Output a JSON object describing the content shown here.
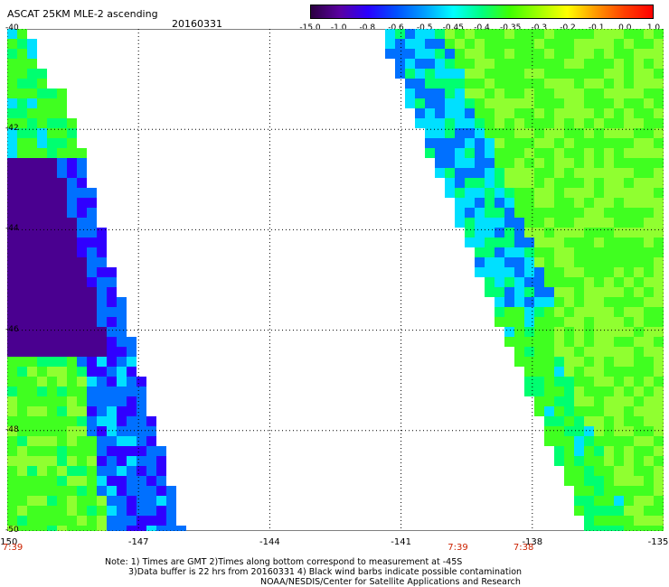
{
  "header": {
    "title": "ASCAT 25KM MLE-2 ascending",
    "date": "20160331"
  },
  "colorbar": {
    "labels": [
      "-15.0",
      "-1.0",
      "-0.8",
      "-0.6",
      "-0.5",
      "-0.45",
      "-0.4",
      "-0.35",
      "-0.3",
      "-0.2",
      "-0.1",
      "0.0",
      "1.0"
    ],
    "colors": [
      "#2b0040",
      "#5a00a0",
      "#2a00ff",
      "#0050ff",
      "#00a0ff",
      "#00ffff",
      "#00ff80",
      "#40ff00",
      "#a0ff00",
      "#ffff00",
      "#ff9900",
      "#ff4000",
      "#ff0000"
    ]
  },
  "map": {
    "lon_range": [
      -150,
      -135
    ],
    "lat_range": [
      -50,
      -40
    ],
    "lon_ticks": [
      "-150",
      "-147",
      "-144",
      "-141",
      "-138",
      "-135"
    ],
    "lat_ticks": [
      "-40",
      "-42",
      "-44",
      "-46",
      "-48",
      "-50"
    ],
    "time_labels": [
      {
        "text": "7:39",
        "lon": -150
      },
      {
        "text": "7:39",
        "lon": -139.7
      },
      {
        "text": "7:38",
        "lon": -138.2
      }
    ]
  },
  "notes": {
    "line1": "Note: 1) Times are GMT 2)Times along bottom correspond to measurement at -45S",
    "line2": "3)Data buffer is 22 hrs from 20160331 4) Black wind barbs indicate possible contamination",
    "line3": "NOAA/NESDIS/Center for Satellite Applications and Research"
  }
}
